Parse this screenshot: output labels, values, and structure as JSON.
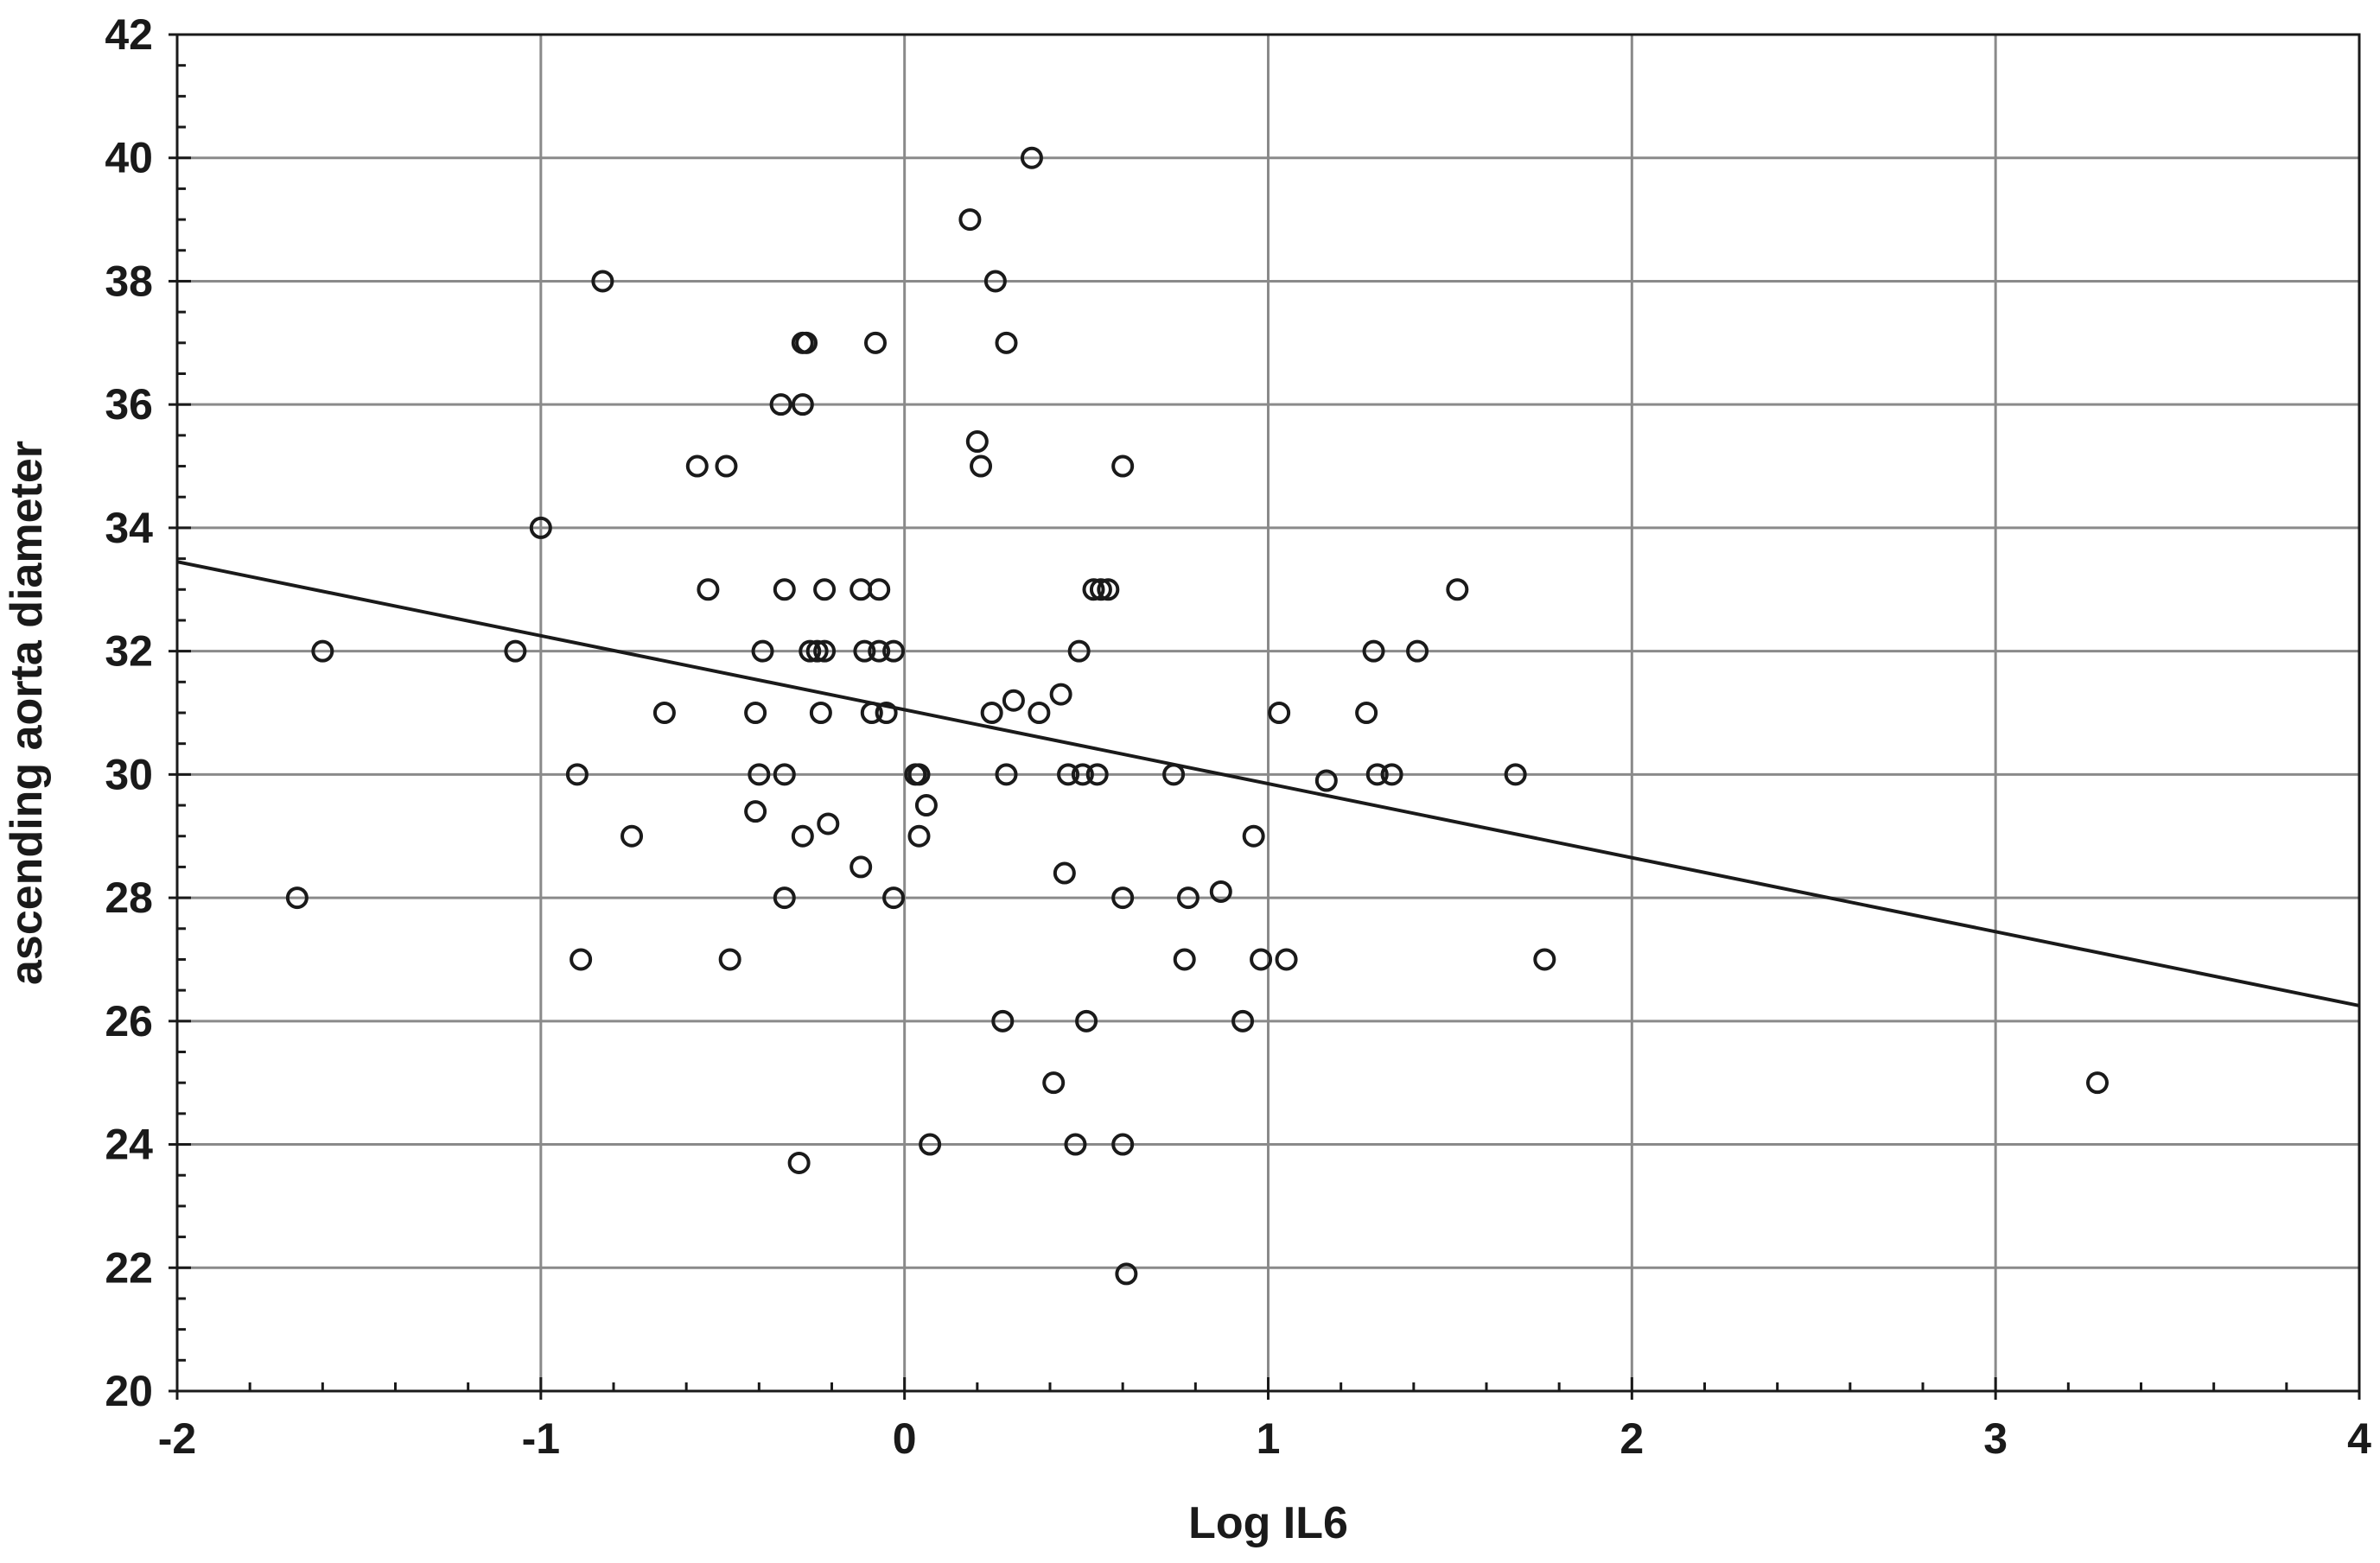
{
  "chart_data": {
    "type": "scatter",
    "xlabel": "Log IL6",
    "ylabel": "ascending aorta diameter",
    "xlim": [
      -2,
      4
    ],
    "ylim": [
      20,
      42
    ],
    "x_ticks": [
      -2,
      -1,
      0,
      1,
      2,
      3,
      4
    ],
    "y_ticks": [
      20,
      22,
      24,
      26,
      28,
      30,
      32,
      34,
      36,
      38,
      40,
      42
    ],
    "x_tick_labels": [
      "-2",
      "-1",
      "0",
      "1",
      "2",
      "3",
      "4"
    ],
    "y_tick_labels": [
      "20",
      "22",
      "24",
      "26",
      "28",
      "30",
      "32",
      "34",
      "36",
      "38",
      "40",
      "42"
    ],
    "grid": true,
    "regression_line": {
      "x": [
        -2,
        4
      ],
      "y": [
        33.45,
        26.25
      ]
    },
    "points": [
      [
        -1.67,
        28
      ],
      [
        -1.6,
        32
      ],
      [
        -1.07,
        32
      ],
      [
        -1.0,
        34
      ],
      [
        -0.83,
        38
      ],
      [
        -0.9,
        30
      ],
      [
        -0.89,
        27
      ],
      [
        -0.75,
        29
      ],
      [
        -0.66,
        31
      ],
      [
        -0.57,
        35
      ],
      [
        -0.54,
        33
      ],
      [
        -0.49,
        35
      ],
      [
        -0.48,
        27
      ],
      [
        -0.41,
        31
      ],
      [
        -0.41,
        29.4
      ],
      [
        -0.4,
        30
      ],
      [
        -0.39,
        32
      ],
      [
        -0.34,
        36
      ],
      [
        -0.33,
        33
      ],
      [
        -0.33,
        28
      ],
      [
        -0.33,
        30
      ],
      [
        -0.29,
        23.7
      ],
      [
        -0.28,
        29
      ],
      [
        -0.28,
        36
      ],
      [
        -0.28,
        37
      ],
      [
        -0.27,
        37
      ],
      [
        -0.26,
        32
      ],
      [
        -0.24,
        32
      ],
      [
        -0.23,
        31
      ],
      [
        -0.22,
        33
      ],
      [
        -0.22,
        32
      ],
      [
        -0.21,
        29.2
      ],
      [
        -0.12,
        28.5
      ],
      [
        -0.12,
        33
      ],
      [
        -0.11,
        32
      ],
      [
        -0.09,
        31
      ],
      [
        -0.08,
        37
      ],
      [
        -0.07,
        33
      ],
      [
        -0.07,
        32
      ],
      [
        -0.05,
        31
      ],
      [
        -0.03,
        32
      ],
      [
        -0.03,
        28
      ],
      [
        0.03,
        30
      ],
      [
        0.04,
        30
      ],
      [
        0.04,
        29
      ],
      [
        0.06,
        29.5
      ],
      [
        0.07,
        24
      ],
      [
        0.18,
        39
      ],
      [
        0.2,
        35.4
      ],
      [
        0.21,
        35
      ],
      [
        0.24,
        31
      ],
      [
        0.25,
        38
      ],
      [
        0.27,
        26
      ],
      [
        0.28,
        37
      ],
      [
        0.28,
        30
      ],
      [
        0.3,
        31.2
      ],
      [
        0.35,
        40
      ],
      [
        0.37,
        31
      ],
      [
        0.41,
        25
      ],
      [
        0.43,
        31.3
      ],
      [
        0.44,
        28.4
      ],
      [
        0.45,
        30
      ],
      [
        0.47,
        24
      ],
      [
        0.48,
        32
      ],
      [
        0.49,
        30
      ],
      [
        0.5,
        26
      ],
      [
        0.52,
        33
      ],
      [
        0.53,
        30
      ],
      [
        0.54,
        33
      ],
      [
        0.56,
        33
      ],
      [
        0.6,
        28
      ],
      [
        0.6,
        24
      ],
      [
        0.6,
        35
      ],
      [
        0.61,
        21.9
      ],
      [
        0.74,
        30
      ],
      [
        0.77,
        27
      ],
      [
        0.78,
        28
      ],
      [
        0.87,
        28.1
      ],
      [
        0.93,
        26
      ],
      [
        0.96,
        29
      ],
      [
        0.98,
        27
      ],
      [
        1.03,
        31
      ],
      [
        1.05,
        27
      ],
      [
        1.16,
        29.9
      ],
      [
        1.27,
        31
      ],
      [
        1.29,
        32
      ],
      [
        1.3,
        30
      ],
      [
        1.34,
        30
      ],
      [
        1.41,
        32
      ],
      [
        1.52,
        33
      ],
      [
        1.68,
        30
      ],
      [
        1.76,
        27
      ],
      [
        3.28,
        25
      ]
    ]
  }
}
